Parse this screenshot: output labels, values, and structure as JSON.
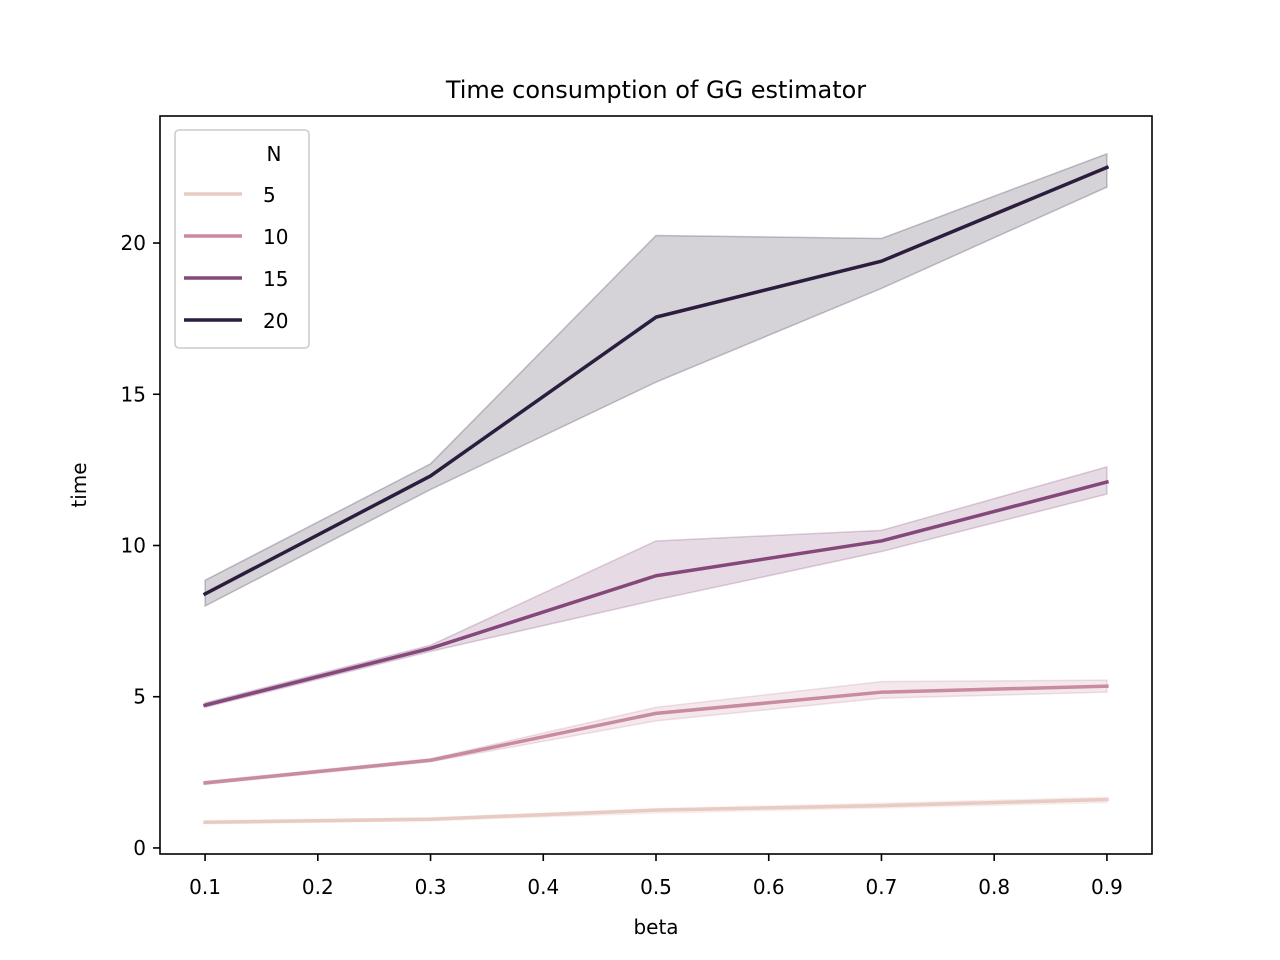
{
  "chart_data": {
    "type": "line",
    "title": "Time consumption of GG estimator",
    "xlabel": "beta",
    "ylabel": "time",
    "x": [
      0.1,
      0.3,
      0.5,
      0.7,
      0.9
    ],
    "xlim": [
      0.06,
      0.94
    ],
    "ylim": [
      -0.2,
      24.2
    ],
    "xticks": [
      "0.1",
      "0.2",
      "0.3",
      "0.4",
      "0.5",
      "0.6",
      "0.7",
      "0.8",
      "0.9"
    ],
    "yticks": [
      "0",
      "5",
      "10",
      "15",
      "20"
    ],
    "grid": false,
    "legend": {
      "title": "N",
      "position": "top-left"
    },
    "series": [
      {
        "name": "5",
        "color": "#e8cbc3",
        "values": [
          0.85,
          0.95,
          1.25,
          1.4,
          1.6
        ],
        "ci_low": [
          0.8,
          0.9,
          1.15,
          1.32,
          1.5
        ],
        "ci_high": [
          0.9,
          1.0,
          1.3,
          1.48,
          1.68
        ]
      },
      {
        "name": "10",
        "color": "#c88b9f",
        "values": [
          2.15,
          2.9,
          4.45,
          5.15,
          5.35
        ],
        "ci_low": [
          2.1,
          2.85,
          4.2,
          4.95,
          5.15
        ],
        "ci_high": [
          2.2,
          2.95,
          4.65,
          5.5,
          5.55
        ]
      },
      {
        "name": "15",
        "color": "#84487a",
        "values": [
          4.72,
          6.6,
          9.0,
          10.15,
          12.1
        ],
        "ci_low": [
          4.65,
          6.5,
          8.2,
          9.8,
          11.7
        ],
        "ci_high": [
          4.8,
          6.7,
          10.15,
          10.5,
          12.6
        ]
      },
      {
        "name": "20",
        "color": "#2b1d3d",
        "values": [
          8.4,
          12.3,
          17.55,
          19.4,
          22.5
        ],
        "ci_low": [
          8.0,
          11.85,
          15.4,
          18.5,
          21.85
        ],
        "ci_high": [
          8.85,
          12.7,
          20.25,
          20.15,
          22.95
        ]
      }
    ]
  }
}
